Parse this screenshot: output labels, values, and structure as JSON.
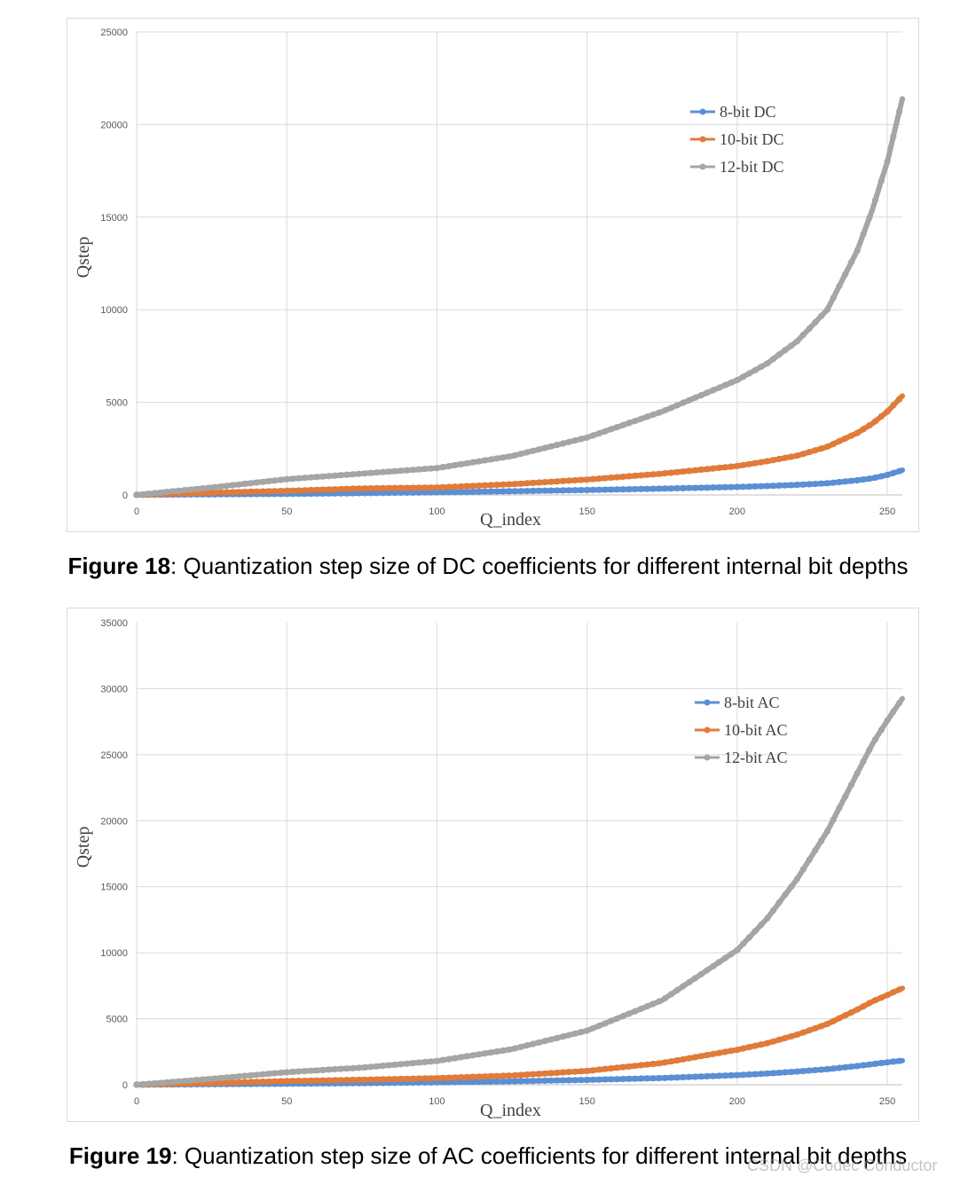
{
  "figures": [
    {
      "caption_number": "Figure 18",
      "caption_text": ": Quantization step size of DC coefficients for different internal bit depths"
    },
    {
      "caption_number": "Figure 19",
      "caption_text": ": Quantization step size of AC coefficients for different internal bit depths"
    }
  ],
  "watermark": "CSDN @Codec Conductor",
  "colors": {
    "blue": "#5b8fd4",
    "orange": "#e07b39",
    "gray": "#a5a5a5",
    "grid": "#d9d9d9"
  },
  "chart_data": [
    {
      "type": "line",
      "xlabel": "Q_index",
      "ylabel": "Qstep",
      "xlim": [
        0,
        255
      ],
      "ylim": [
        0,
        25000
      ],
      "xticks": [
        0,
        50,
        100,
        150,
        200,
        250
      ],
      "yticks": [
        0,
        5000,
        10000,
        15000,
        20000,
        25000
      ],
      "grid": true,
      "legend_position": "top-right",
      "x": [
        0,
        25,
        50,
        75,
        100,
        125,
        150,
        175,
        200,
        210,
        220,
        230,
        240,
        245,
        250,
        255
      ],
      "series": [
        {
          "name": "8-bit DC",
          "color": "#5b8fd4",
          "values": [
            4,
            30,
            55,
            95,
            140,
            200,
            265,
            340,
            430,
            480,
            545,
            630,
            790,
            900,
            1080,
            1336
          ]
        },
        {
          "name": "10-bit DC",
          "color": "#e07b39",
          "values": [
            4,
            120,
            220,
            350,
            400,
            580,
            830,
            1150,
            1560,
            1820,
            2120,
            2600,
            3350,
            3850,
            4500,
            5347
          ]
        },
        {
          "name": "12-bit DC",
          "color": "#a5a5a5",
          "values": [
            4,
            400,
            850,
            1150,
            1450,
            2100,
            3100,
            4500,
            6200,
            7100,
            8300,
            10000,
            13200,
            15400,
            18000,
            21387
          ]
        }
      ]
    },
    {
      "type": "line",
      "xlabel": "Q_index",
      "ylabel": "Qstep",
      "xlim": [
        0,
        255
      ],
      "ylim": [
        0,
        35000
      ],
      "xticks": [
        0,
        50,
        100,
        150,
        200,
        250
      ],
      "yticks": [
        0,
        5000,
        10000,
        15000,
        20000,
        25000,
        30000
      ],
      "yticks_extra": [
        35000
      ],
      "grid": true,
      "legend_position": "top-right",
      "x": [
        0,
        25,
        50,
        75,
        100,
        125,
        150,
        175,
        200,
        210,
        220,
        230,
        240,
        245,
        250,
        255
      ],
      "series": [
        {
          "name": "8-bit AC",
          "color": "#5b8fd4",
          "values": [
            4,
            40,
            80,
            120,
            180,
            260,
            370,
            510,
            730,
            850,
            1000,
            1180,
            1420,
            1560,
            1700,
            1828
          ]
        },
        {
          "name": "10-bit AC",
          "color": "#e07b39",
          "values": [
            4,
            130,
            280,
            380,
            500,
            700,
            1050,
            1650,
            2650,
            3150,
            3800,
            4600,
            5700,
            6300,
            6800,
            7312
          ]
        },
        {
          "name": "12-bit AC",
          "color": "#a5a5a5",
          "values": [
            4,
            450,
            950,
            1300,
            1800,
            2700,
            4100,
            6400,
            10200,
            12600,
            15600,
            19200,
            23600,
            25800,
            27600,
            29247
          ]
        }
      ]
    }
  ]
}
